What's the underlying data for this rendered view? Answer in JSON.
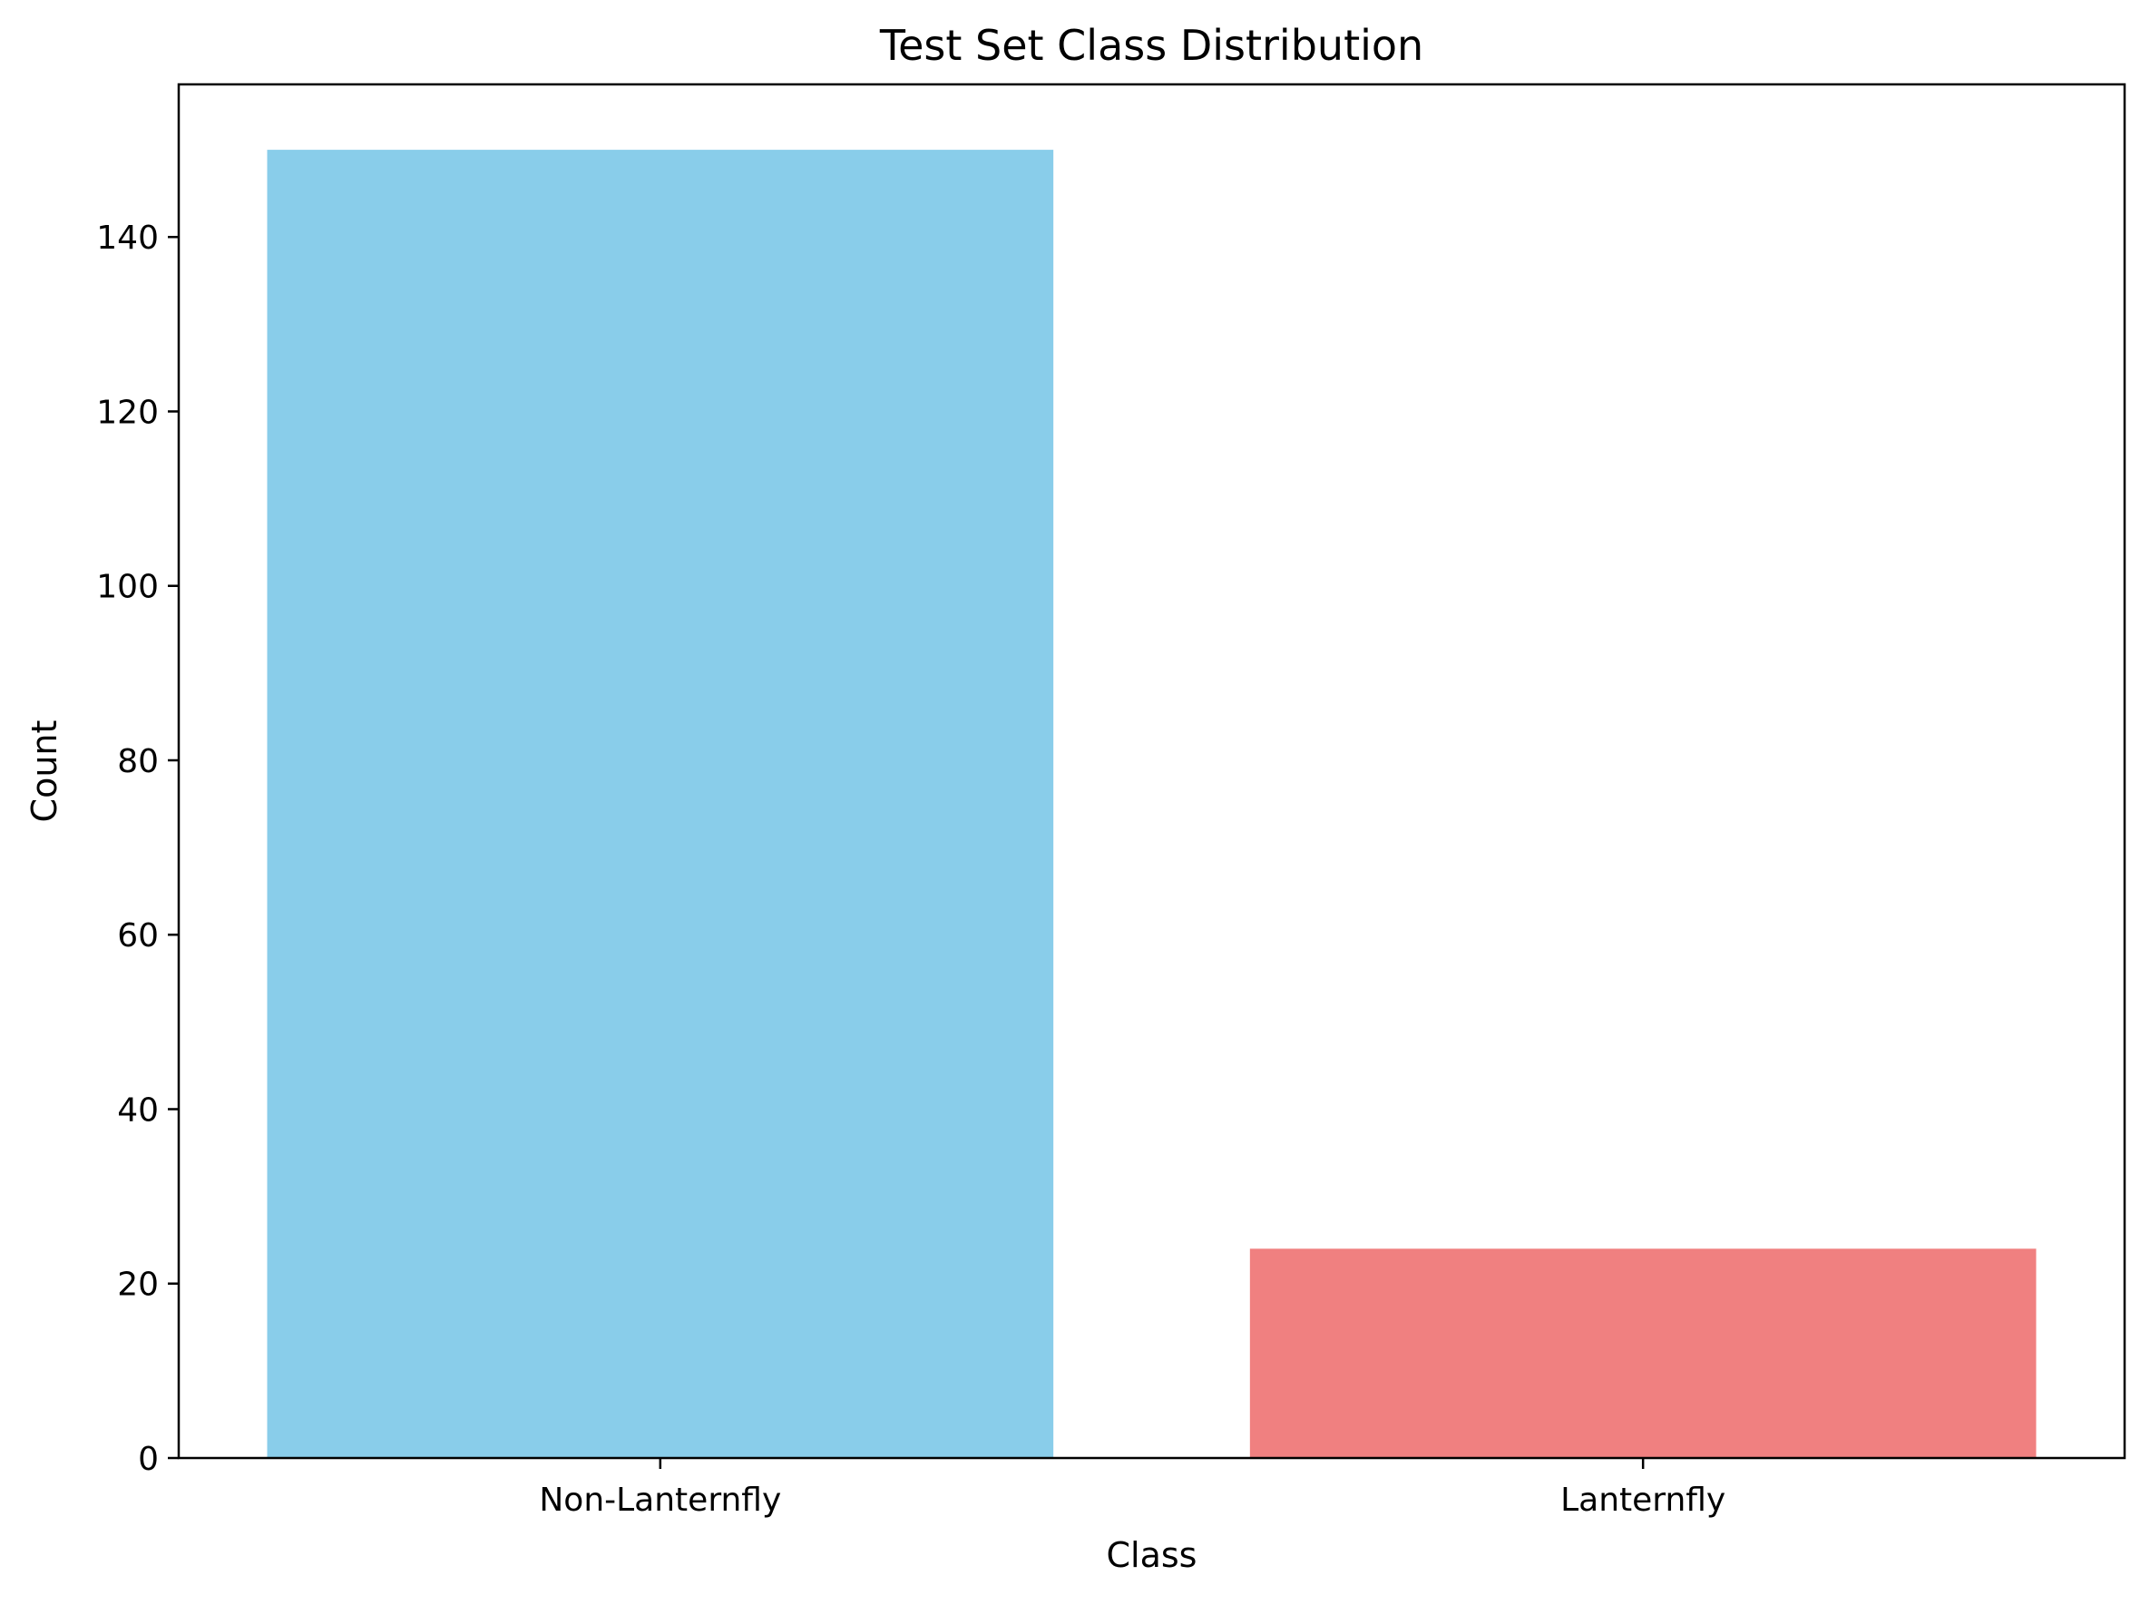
{
  "chart_data": {
    "type": "bar",
    "title": "Test Set Class Distribution",
    "xlabel": "Class",
    "ylabel": "Count",
    "categories": [
      "Non-Lanternfly",
      "Lanternfly"
    ],
    "values": [
      150,
      24
    ],
    "colors": [
      "#89CDEA",
      "#F08080"
    ],
    "ylim": [
      0,
      157.5
    ],
    "yticks": [
      0,
      20,
      40,
      60,
      80,
      100,
      120,
      140
    ],
    "ytick_labels": [
      "0",
      "20",
      "40",
      "60",
      "80",
      "100",
      "120",
      "140"
    ],
    "grid": false,
    "legend": "none"
  }
}
